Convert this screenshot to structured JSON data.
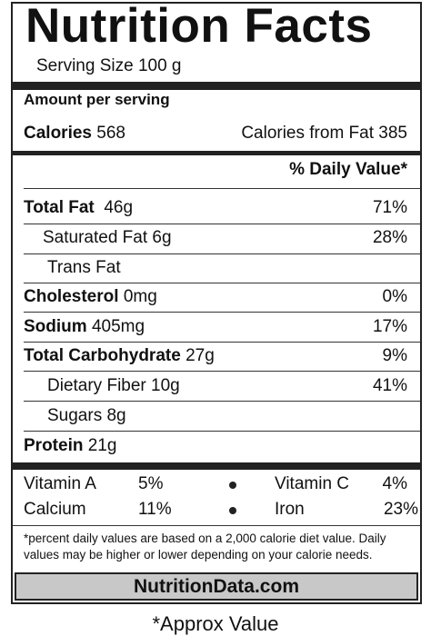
{
  "label": {
    "title": "Nutrition Facts",
    "serving_size": "Serving Size 100 g",
    "amount_per_serving": "Amount per serving",
    "calories_label": "Calories",
    "calories_value": "568",
    "calories_from_fat": "Calories from Fat 385",
    "daily_value_header": "% Daily Value*",
    "nutrients": [
      {
        "name": "Total Fat",
        "amount": "46g",
        "dv": "71%"
      },
      {
        "name": "Saturated Fat 6g",
        "amount": "",
        "dv": "28%"
      },
      {
        "name": "Trans Fat",
        "amount": "",
        "dv": ""
      },
      {
        "name": "Cholesterol",
        "amount": "0mg",
        "dv": "0%"
      },
      {
        "name": "Sodium",
        "amount": "405mg",
        "dv": "17%"
      },
      {
        "name": "Total Carbohydrate",
        "amount": "27g",
        "dv": "9%"
      },
      {
        "name": "Dietary Fiber 10g",
        "amount": "",
        "dv": "41%"
      },
      {
        "name": "Sugars 8g",
        "amount": "",
        "dv": ""
      },
      {
        "name": "Protein",
        "amount": "21g",
        "dv": ""
      }
    ],
    "vitamins": [
      {
        "name": "Vitamin A",
        "dv": "5%"
      },
      {
        "name": "Vitamin C",
        "dv": "4%"
      },
      {
        "name": "Calcium",
        "dv": "11%"
      },
      {
        "name": "Iron",
        "dv": "23%"
      }
    ],
    "footnote": "*percent daily values are based on a 2,000 calorie diet value. Daily values may be higher or lower depending on your calorie needs.",
    "brand": "NutritionData.com"
  },
  "caption": "*Approx Value"
}
